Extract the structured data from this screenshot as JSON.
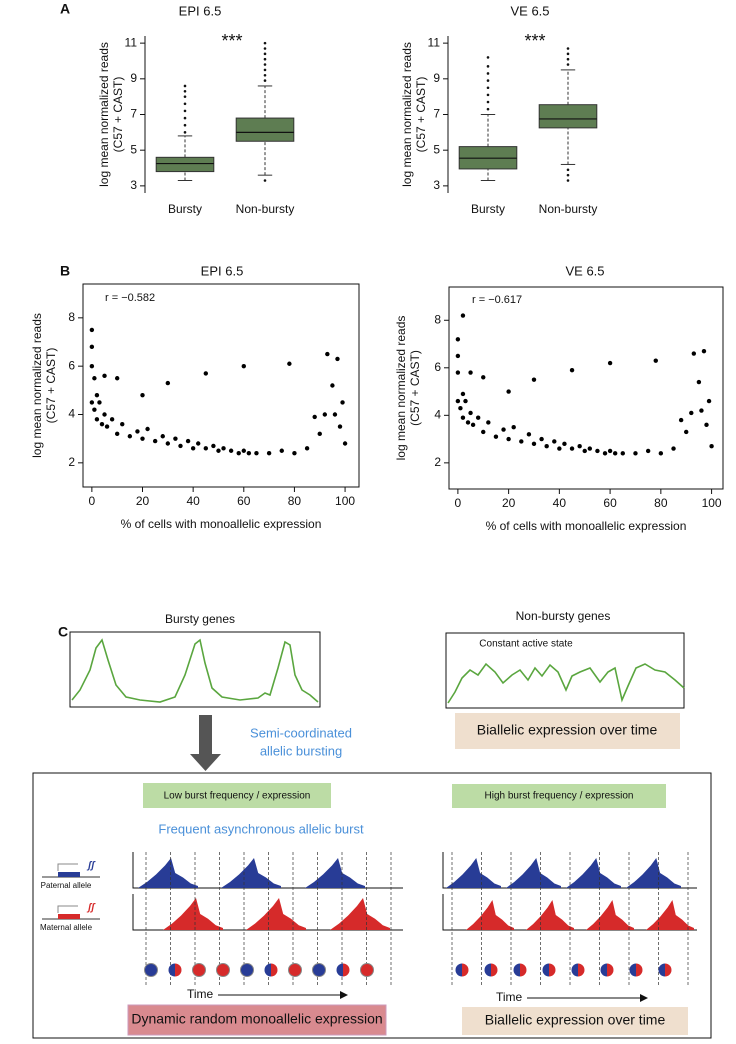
{
  "chart_data": [
    {
      "type": "box",
      "panel": "A",
      "title": "EPI 6.5",
      "annotation": "***",
      "ylabel": [
        "log mean normalized reads",
        "(C57 + CAST)"
      ],
      "categories": [
        "Bursty",
        "Non-bursty"
      ],
      "color": "#5e7d52",
      "stats": [
        {
          "min": 3.3,
          "q1": 3.8,
          "median": 4.25,
          "q3": 4.6,
          "max": 5.8
        },
        {
          "min": 3.6,
          "q1": 5.5,
          "median": 6.0,
          "q3": 6.8,
          "max": 8.6
        }
      ],
      "outliers": [
        [
          6.0,
          6.4,
          6.8,
          7.2,
          7.6,
          8.0,
          8.3,
          8.6
        ],
        [
          3.3,
          8.9,
          9.2,
          9.5,
          9.8,
          10.1,
          10.4,
          10.7,
          11.0
        ]
      ],
      "ylim": [
        2.6,
        11.4
      ],
      "yticks": [
        3,
        5,
        7,
        9,
        11
      ]
    },
    {
      "type": "box",
      "panel": null,
      "title": "VE 6.5",
      "annotation": "***",
      "ylabel": [
        "log mean normalized reads",
        "(C57 + CAST)"
      ],
      "categories": [
        "Bursty",
        "Non-bursty"
      ],
      "color": "#5e7d52",
      "stats": [
        {
          "min": 3.3,
          "q1": 3.95,
          "median": 4.55,
          "q3": 5.2,
          "max": 7.0
        },
        {
          "min": 4.2,
          "q1": 6.25,
          "median": 6.75,
          "q3": 7.55,
          "max": 9.5
        }
      ],
      "outliers": [
        [
          7.3,
          7.7,
          8.1,
          8.5,
          8.9,
          9.3,
          9.7,
          10.2
        ],
        [
          3.3,
          3.6,
          3.9,
          9.8,
          10.1,
          10.4,
          10.7
        ]
      ],
      "ylim": [
        2.6,
        11.4
      ],
      "yticks": [
        3,
        5,
        7,
        9,
        11
      ]
    },
    {
      "type": "scatter",
      "panel": "B",
      "title": "EPI 6.5",
      "annotation": "r = −0.582",
      "ylabel": [
        "log mean normalized reads",
        "(C57 + CAST)"
      ],
      "xlabel": "% of cells with monoallelic expression",
      "color": "#000000",
      "x": [
        0,
        0,
        0,
        0,
        1,
        1,
        2,
        2,
        3,
        4,
        5,
        6,
        8,
        10,
        12,
        15,
        18,
        20,
        22,
        25,
        28,
        30,
        33,
        35,
        38,
        40,
        42,
        45,
        48,
        50,
        52,
        55,
        58,
        60,
        62,
        65,
        70,
        75,
        80,
        85,
        90,
        92,
        95,
        97,
        98,
        99,
        100,
        5,
        10,
        20,
        30,
        45,
        60,
        78,
        88,
        93,
        96
      ],
      "y": [
        7.5,
        6.8,
        6.0,
        4.5,
        5.5,
        4.2,
        4.8,
        3.8,
        4.5,
        3.6,
        4.0,
        3.5,
        3.8,
        3.2,
        3.6,
        3.1,
        3.3,
        3.0,
        3.4,
        2.9,
        3.1,
        2.8,
        3.0,
        2.7,
        2.9,
        2.6,
        2.8,
        2.6,
        2.7,
        2.5,
        2.6,
        2.5,
        2.4,
        2.5,
        2.4,
        2.4,
        2.4,
        2.5,
        2.4,
        2.6,
        3.2,
        4.0,
        5.2,
        6.3,
        3.5,
        4.5,
        2.8,
        5.6,
        5.5,
        4.8,
        5.3,
        5.7,
        6.0,
        6.1,
        3.9,
        6.5,
        4.0
      ],
      "xlim": [
        -3.5,
        105.5
      ],
      "ylim": [
        1.0,
        9.4
      ],
      "xticks": [
        0,
        20,
        40,
        60,
        80,
        100
      ],
      "yticks": [
        2,
        4,
        6,
        8
      ]
    },
    {
      "type": "scatter",
      "panel": null,
      "title": "VE 6.5",
      "annotation": "r = −0.617",
      "ylabel": [
        "log mean normalized reads",
        "(C57 + CAST)"
      ],
      "xlabel": "% of cells with monoallelic expression",
      "color": "#000000",
      "x": [
        0,
        0,
        0,
        0,
        2,
        1,
        2,
        2,
        3,
        4,
        5,
        6,
        8,
        10,
        12,
        15,
        18,
        20,
        22,
        25,
        28,
        30,
        33,
        35,
        38,
        40,
        42,
        45,
        48,
        50,
        52,
        55,
        58,
        60,
        62,
        65,
        70,
        75,
        80,
        85,
        90,
        92,
        95,
        97,
        98,
        99,
        100,
        5,
        10,
        20,
        30,
        45,
        60,
        78,
        88,
        93,
        96
      ],
      "y": [
        7.2,
        6.5,
        5.8,
        4.6,
        8.2,
        4.3,
        4.9,
        3.9,
        4.6,
        3.7,
        4.1,
        3.6,
        3.9,
        3.3,
        3.7,
        3.1,
        3.4,
        3.0,
        3.5,
        2.9,
        3.2,
        2.8,
        3.0,
        2.7,
        2.9,
        2.6,
        2.8,
        2.6,
        2.7,
        2.5,
        2.6,
        2.5,
        2.4,
        2.5,
        2.4,
        2.4,
        2.4,
        2.5,
        2.4,
        2.6,
        3.3,
        4.1,
        5.4,
        6.7,
        3.6,
        4.6,
        2.7,
        5.8,
        5.6,
        5.0,
        5.5,
        5.9,
        6.2,
        6.3,
        3.8,
        6.6,
        4.2
      ],
      "xlim": [
        -3.5,
        104.5
      ],
      "ylim": [
        0.9,
        9.4
      ],
      "xticks": [
        0,
        20,
        40,
        60,
        80,
        100
      ],
      "yticks": [
        2,
        4,
        6,
        8
      ]
    }
  ],
  "diagram": {
    "panel": "C",
    "bursty_title": "Bursty genes",
    "nonbursty_title": "Non-bursty genes",
    "constant_state": "Constant active state",
    "semi_coordinated": [
      "Semi-coordinated",
      "allelic bursting"
    ],
    "biallelic_top": "Biallelic expression over time",
    "low_burst": "Low burst frequency / expression",
    "high_burst": "High burst frequency / expression",
    "frequent_async": "Frequent asynchronous allelic burst",
    "paternal": "Paternal allele",
    "maternal": "Maternal allele",
    "time_left": "Time",
    "time_right": "Time",
    "dynamic_rme": "Dynamic random monoallelic expression",
    "biallelic_bottom": "Biallelic expression over time"
  }
}
